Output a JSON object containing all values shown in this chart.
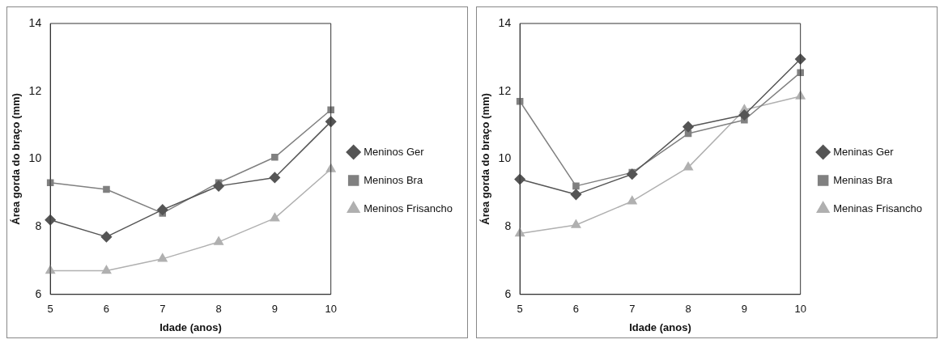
{
  "chart_data": [
    {
      "type": "line",
      "xlabel": "Idade (anos)",
      "ylabel": "Área gorda do braço (mm)",
      "categories": [
        "5",
        "6",
        "7",
        "8",
        "9",
        "10"
      ],
      "ylim": [
        6,
        14
      ],
      "yticks": [
        6,
        8,
        10,
        12,
        14
      ],
      "grid": false,
      "legend": "right",
      "line_style": "solid",
      "series": [
        {
          "name": "Meninos Ger",
          "color": "#555555",
          "marker": "diamond",
          "values": [
            8.2,
            7.7,
            8.5,
            9.2,
            9.45,
            11.1
          ]
        },
        {
          "name": "Meninos Bra",
          "color": "#808080",
          "marker": "square",
          "values": [
            9.3,
            9.1,
            8.4,
            9.3,
            10.05,
            11.45
          ]
        },
        {
          "name": "Meninos Frisancho",
          "color": "#b0b0b0",
          "marker": "triangle",
          "values": [
            6.7,
            6.7,
            7.05,
            7.55,
            8.25,
            9.7
          ]
        }
      ]
    },
    {
      "type": "line",
      "xlabel": "Idade (anos)",
      "ylabel": "Área gorda do braço (mm)",
      "categories": [
        "5",
        "6",
        "7",
        "8",
        "9",
        "10"
      ],
      "ylim": [
        6,
        14
      ],
      "yticks": [
        6,
        8,
        10,
        12,
        14
      ],
      "grid": false,
      "legend": "right",
      "line_style": "solid",
      "series": [
        {
          "name": "Meninas Ger",
          "color": "#555555",
          "marker": "diamond",
          "values": [
            9.4,
            8.95,
            9.55,
            10.95,
            11.3,
            12.95
          ]
        },
        {
          "name": "Meninas Bra",
          "color": "#808080",
          "marker": "square",
          "values": [
            11.7,
            9.2,
            9.6,
            10.75,
            11.15,
            12.55
          ]
        },
        {
          "name": "Meninas Frisancho",
          "color": "#b0b0b0",
          "marker": "triangle",
          "values": [
            7.8,
            8.05,
            8.75,
            9.75,
            11.45,
            11.85
          ]
        }
      ]
    }
  ]
}
